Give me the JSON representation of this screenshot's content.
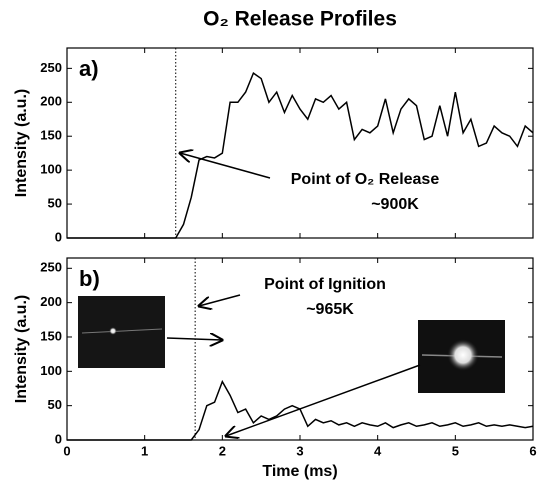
{
  "title": "O₂ Release Profiles",
  "chart_data": [
    {
      "type": "line",
      "panel_label": "a)",
      "ylabel": "Intensity (a.u.)",
      "color": "#000000",
      "x": [
        0,
        0.1,
        0.2,
        0.3,
        0.4,
        0.5,
        0.6,
        0.7,
        0.8,
        0.9,
        1,
        1.1,
        1.2,
        1.3,
        1.4,
        1.5,
        1.6,
        1.7,
        1.8,
        1.9,
        2,
        2.1,
        2.2,
        2.3,
        2.4,
        2.5,
        2.6,
        2.7,
        2.8,
        2.9,
        3,
        3.1,
        3.2,
        3.3,
        3.4,
        3.5,
        3.6,
        3.7,
        3.8,
        3.9,
        4,
        4.1,
        4.2,
        4.3,
        4.4,
        4.5,
        4.6,
        4.7,
        4.8,
        4.9,
        5,
        5.1,
        5.2,
        5.3,
        5.4,
        5.5,
        5.6,
        5.7,
        5.8,
        5.9,
        6
      ],
      "values": [
        0,
        0,
        0,
        0,
        0,
        0,
        0,
        0,
        0,
        0,
        0,
        0,
        0,
        0,
        0,
        20,
        60,
        115,
        120,
        118,
        125,
        200,
        200,
        215,
        243,
        235,
        200,
        215,
        185,
        210,
        190,
        175,
        205,
        200,
        210,
        190,
        200,
        145,
        160,
        155,
        165,
        205,
        155,
        190,
        205,
        195,
        145,
        150,
        195,
        150,
        215,
        155,
        175,
        135,
        140,
        165,
        155,
        150,
        135,
        165,
        155
      ],
      "xlim": [
        0,
        6
      ],
      "xticks": [
        0,
        1,
        2,
        3,
        4,
        5,
        6
      ],
      "ylim": [
        0,
        280
      ],
      "yticks": [
        0,
        50,
        100,
        150,
        200,
        250
      ],
      "vline": 1.4,
      "annotations": [
        "Point of O₂ Release",
        "~900K"
      ]
    },
    {
      "type": "line",
      "panel_label": "b)",
      "ylabel": "Intensity (a.u.)",
      "xlabel": "Time (ms)",
      "color": "#000000",
      "x": [
        0,
        0.1,
        0.2,
        0.3,
        0.4,
        0.5,
        0.6,
        0.7,
        0.8,
        0.9,
        1,
        1.1,
        1.2,
        1.3,
        1.4,
        1.5,
        1.6,
        1.7,
        1.8,
        1.9,
        2,
        2.1,
        2.2,
        2.3,
        2.4,
        2.5,
        2.6,
        2.7,
        2.8,
        2.9,
        3,
        3.1,
        3.2,
        3.3,
        3.4,
        3.5,
        3.6,
        3.7,
        3.8,
        3.9,
        4,
        4.1,
        4.2,
        4.3,
        4.4,
        4.5,
        4.6,
        4.7,
        4.8,
        4.9,
        5,
        5.1,
        5.2,
        5.3,
        5.4,
        5.5,
        5.6,
        5.7,
        5.8,
        5.9,
        6
      ],
      "values": [
        0,
        0,
        0,
        0,
        0,
        0,
        0,
        0,
        0,
        0,
        0,
        0,
        0,
        0,
        0,
        0,
        0,
        15,
        50,
        55,
        85,
        65,
        40,
        45,
        25,
        35,
        30,
        35,
        45,
        50,
        45,
        20,
        30,
        25,
        28,
        22,
        25,
        20,
        25,
        22,
        20,
        25,
        18,
        22,
        25,
        20,
        22,
        25,
        20,
        22,
        25,
        20,
        22,
        25,
        20,
        22,
        20,
        22,
        20,
        18,
        20
      ],
      "xlim": [
        0,
        6
      ],
      "xticks": [
        0,
        1,
        2,
        3,
        4,
        5,
        6
      ],
      "ylim": [
        0,
        265
      ],
      "yticks": [
        0,
        50,
        100,
        150,
        200,
        250
      ],
      "vline": 1.65,
      "annotations": [
        "Point of Ignition",
        "~965K"
      ]
    }
  ]
}
